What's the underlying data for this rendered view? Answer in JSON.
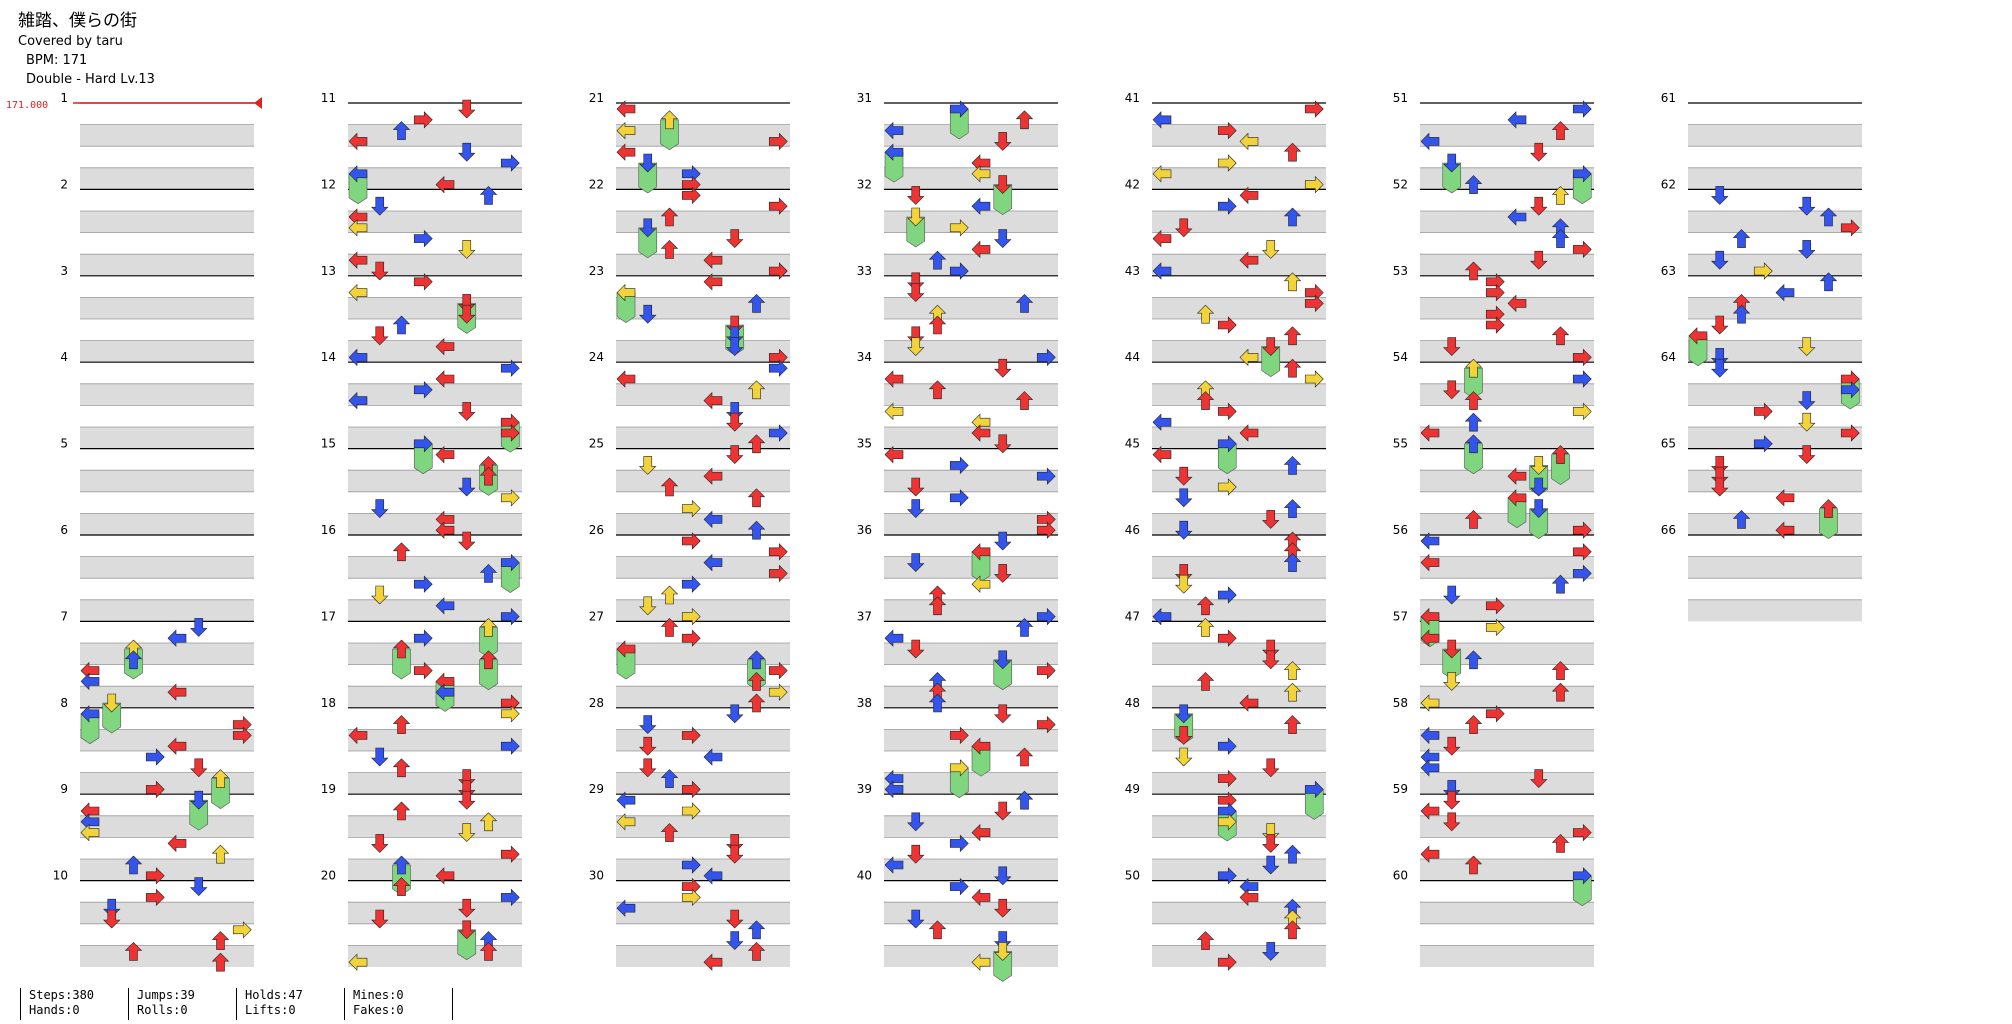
{
  "header": {
    "title": "雑踏、僕らの街",
    "cover": "Covered by taru",
    "bpm": "BPM: 171",
    "difficulty": "Double - Hard  Lv.13"
  },
  "bpm_change": "171.000",
  "measure_labels": [
    "1",
    "2",
    "3",
    "4",
    "5",
    "6",
    "7",
    "8",
    "9",
    "10",
    "11",
    "12",
    "13",
    "14",
    "15",
    "16",
    "17",
    "18",
    "19",
    "20",
    "21",
    "22",
    "23",
    "24",
    "25",
    "26",
    "27",
    "28",
    "29",
    "30",
    "31",
    "32",
    "33",
    "34",
    "35",
    "36",
    "37",
    "38",
    "39",
    "40",
    "41",
    "42",
    "43",
    "44",
    "45",
    "46",
    "47",
    "48",
    "49",
    "50",
    "51",
    "52",
    "53",
    "54",
    "55",
    "56",
    "57",
    "58",
    "59",
    "60",
    "61",
    "62",
    "63",
    "64",
    "65",
    "66"
  ],
  "colors": {
    "red": "#ee3333",
    "blue": "#3355ee",
    "yellow": "#f2d43a",
    "hold": "#7fd67f",
    "band": "#dcdcdc",
    "bpm": "#dd2222"
  },
  "stats": {
    "steps": "Steps:380",
    "hands": "Hands:0",
    "jumps": "Jumps:39",
    "rolls": "Rolls:0",
    "holds": "Holds:47",
    "lifts": "Lifts:0",
    "mines": "Mines:0",
    "fakes": "Fakes:0"
  }
}
